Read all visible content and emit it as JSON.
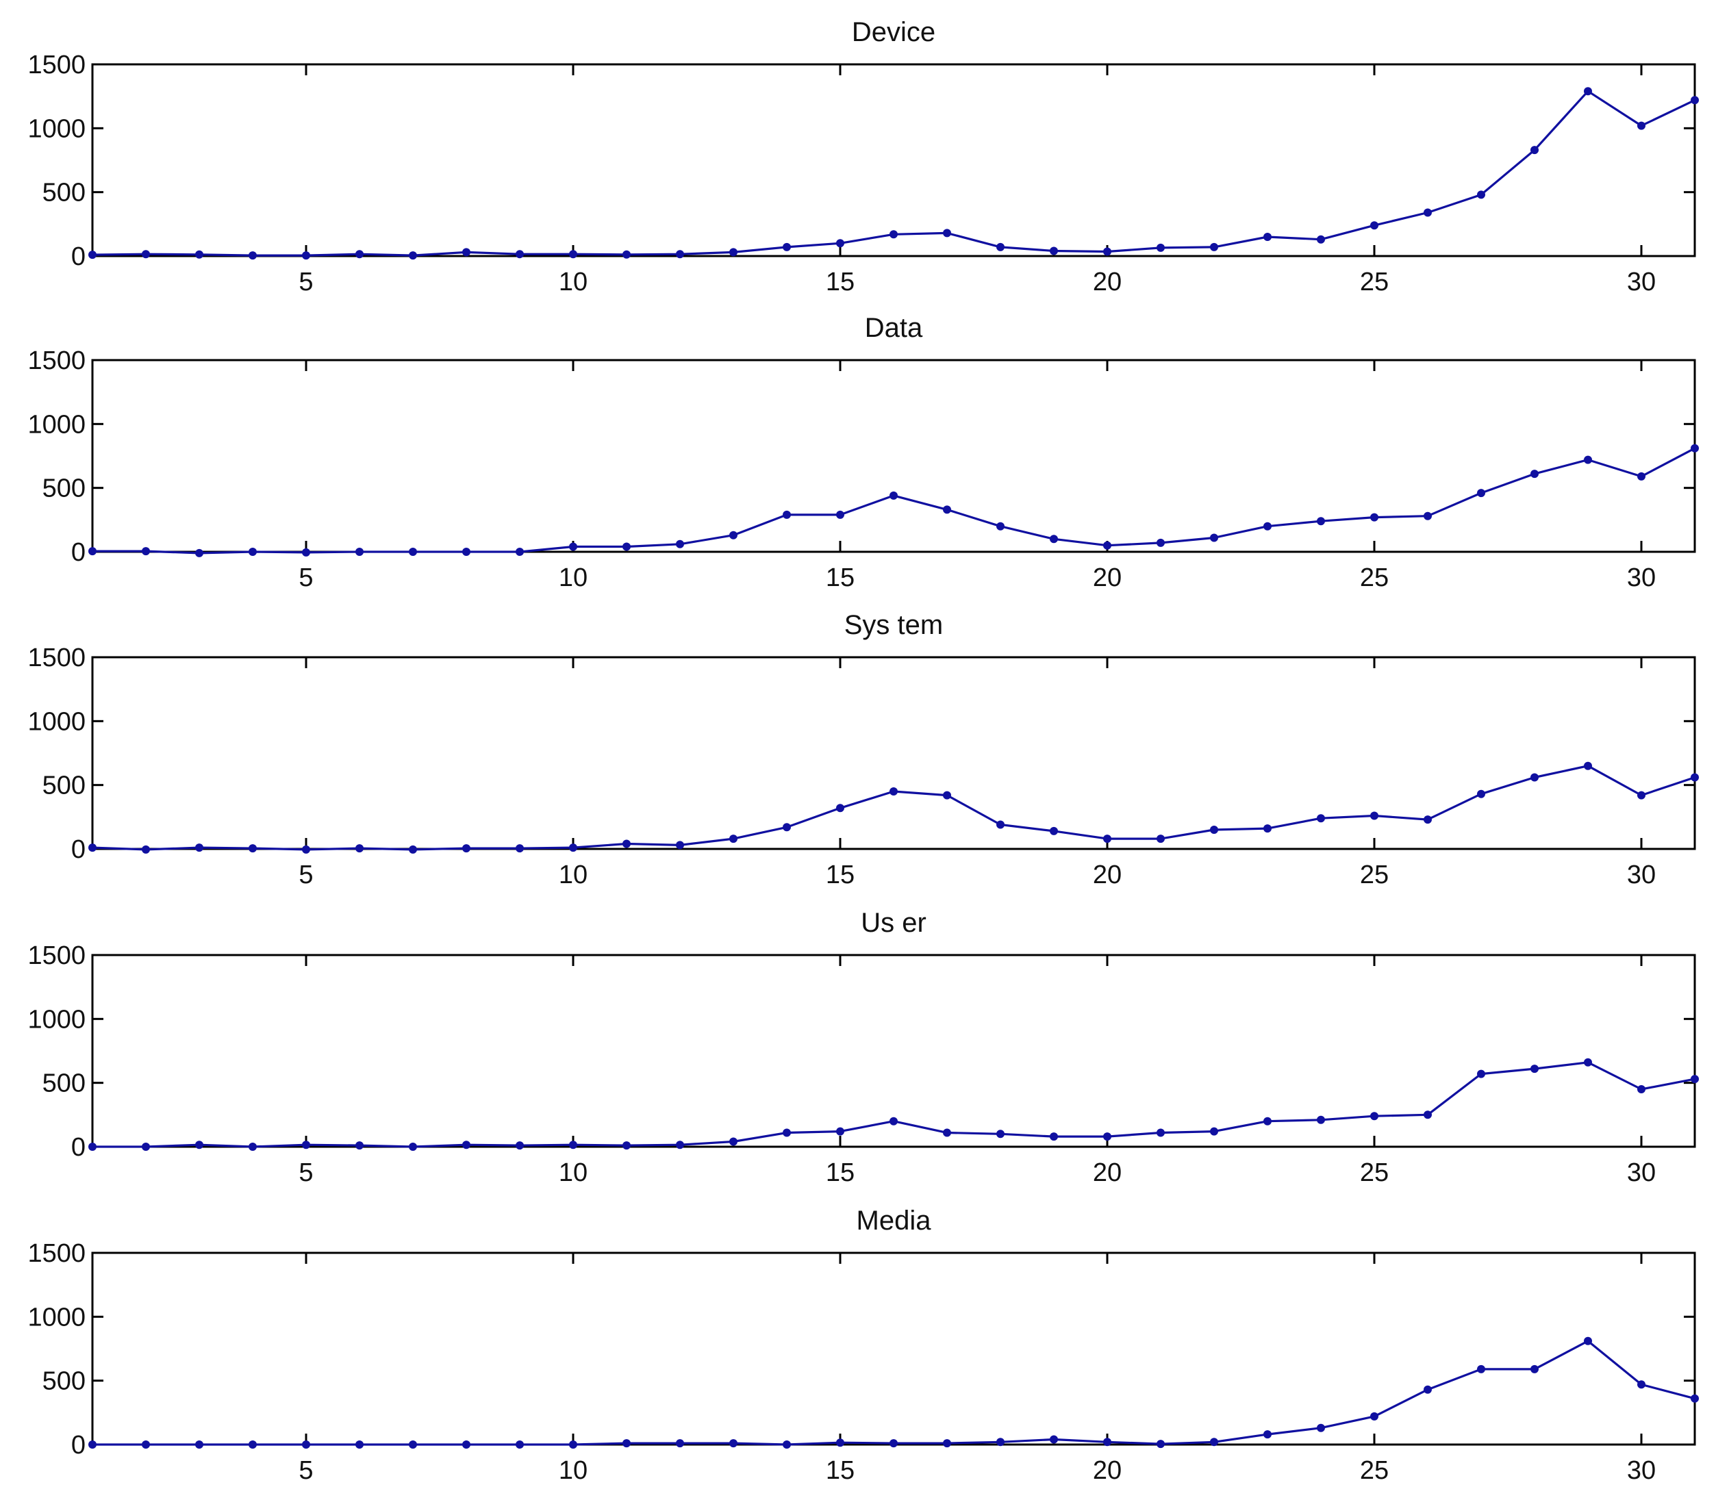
{
  "colors": {
    "series": "#1010a0",
    "axes": "#000000",
    "background": "#ffffff"
  },
  "chart_data": [
    {
      "type": "line",
      "title": "Device",
      "x": [
        1,
        2,
        3,
        4,
        5,
        6,
        7,
        8,
        9,
        10,
        11,
        12,
        13,
        14,
        15,
        16,
        17,
        18,
        19,
        20,
        21,
        22,
        23,
        24,
        25,
        26,
        27,
        28,
        29,
        30,
        31
      ],
      "xticks": [
        5,
        10,
        15,
        20,
        25,
        30
      ],
      "xlim": [
        1,
        31
      ],
      "yticks": [
        0,
        500,
        1000,
        1500
      ],
      "ylim": [
        0,
        1500
      ],
      "series": [
        {
          "values": [
            10,
            15,
            12,
            5,
            5,
            15,
            5,
            30,
            15,
            15,
            12,
            15,
            30,
            70,
            100,
            170,
            180,
            70,
            40,
            35,
            65,
            70,
            150,
            130,
            240,
            340,
            480,
            830,
            1290,
            1020,
            1220
          ]
        }
      ]
    },
    {
      "type": "line",
      "title": "Data",
      "x": [
        1,
        2,
        3,
        4,
        5,
        6,
        7,
        8,
        9,
        10,
        11,
        12,
        13,
        14,
        15,
        16,
        17,
        18,
        19,
        20,
        21,
        22,
        23,
        24,
        25,
        26,
        27,
        28,
        29,
        30,
        31
      ],
      "xticks": [
        5,
        10,
        15,
        20,
        25,
        30
      ],
      "xlim": [
        1,
        31
      ],
      "yticks": [
        0,
        500,
        1000,
        1500
      ],
      "ylim": [
        0,
        1500
      ],
      "series": [
        {
          "values": [
            5,
            5,
            -10,
            0,
            -5,
            0,
            0,
            0,
            0,
            40,
            40,
            60,
            130,
            290,
            290,
            440,
            330,
            200,
            100,
            50,
            70,
            110,
            200,
            240,
            270,
            280,
            460,
            610,
            720,
            590,
            810
          ]
        }
      ]
    },
    {
      "type": "line",
      "title": "Sys tem",
      "x": [
        1,
        2,
        3,
        4,
        5,
        6,
        7,
        8,
        9,
        10,
        11,
        12,
        13,
        14,
        15,
        16,
        17,
        18,
        19,
        20,
        21,
        22,
        23,
        24,
        25,
        26,
        27,
        28,
        29,
        30,
        31
      ],
      "xticks": [
        5,
        10,
        15,
        20,
        25,
        30
      ],
      "xlim": [
        1,
        31
      ],
      "yticks": [
        0,
        500,
        1000,
        1500
      ],
      "ylim": [
        0,
        1500
      ],
      "series": [
        {
          "values": [
            10,
            -5,
            10,
            5,
            -5,
            5,
            -5,
            5,
            5,
            10,
            40,
            30,
            80,
            170,
            320,
            450,
            420,
            190,
            140,
            80,
            80,
            150,
            160,
            240,
            260,
            230,
            430,
            560,
            650,
            420,
            560
          ]
        }
      ]
    },
    {
      "type": "line",
      "title": "Us er",
      "x": [
        1,
        2,
        3,
        4,
        5,
        6,
        7,
        8,
        9,
        10,
        11,
        12,
        13,
        14,
        15,
        16,
        17,
        18,
        19,
        20,
        21,
        22,
        23,
        24,
        25,
        26,
        27,
        28,
        29,
        30,
        31
      ],
      "xticks": [
        5,
        10,
        15,
        20,
        25,
        30
      ],
      "xlim": [
        1,
        31
      ],
      "yticks": [
        0,
        500,
        1000,
        1500
      ],
      "ylim": [
        0,
        1500
      ],
      "series": [
        {
          "values": [
            0,
            0,
            15,
            0,
            15,
            10,
            0,
            15,
            10,
            15,
            10,
            15,
            40,
            110,
            120,
            200,
            110,
            100,
            80,
            80,
            110,
            120,
            200,
            210,
            240,
            250,
            570,
            610,
            660,
            450,
            530
          ]
        }
      ]
    },
    {
      "type": "line",
      "title": "Media",
      "x": [
        1,
        2,
        3,
        4,
        5,
        6,
        7,
        8,
        9,
        10,
        11,
        12,
        13,
        14,
        15,
        16,
        17,
        18,
        19,
        20,
        21,
        22,
        23,
        24,
        25,
        26,
        27,
        28,
        29,
        30,
        31
      ],
      "xticks": [
        5,
        10,
        15,
        20,
        25,
        30
      ],
      "xlim": [
        1,
        31
      ],
      "yticks": [
        0,
        500,
        1000,
        1500
      ],
      "ylim": [
        0,
        1500
      ],
      "series": [
        {
          "values": [
            0,
            0,
            0,
            0,
            0,
            0,
            0,
            0,
            0,
            0,
            10,
            10,
            10,
            0,
            15,
            10,
            10,
            20,
            40,
            20,
            5,
            20,
            80,
            130,
            220,
            430,
            590,
            590,
            810,
            470,
            360
          ]
        }
      ]
    }
  ]
}
